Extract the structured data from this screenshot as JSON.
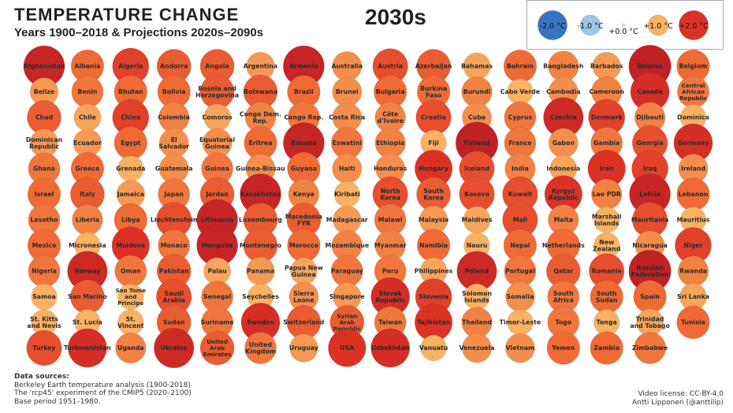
{
  "header": {
    "title": "TEMPERATURE CHANGE",
    "subtitle": "Years 1900–2018 & Projections 2020s–2090s",
    "year": "2030s"
  },
  "legend": {
    "items": [
      {
        "label": "-2.0 °C",
        "value": -2.0,
        "color": "#3a73c2"
      },
      {
        "label": "-1.0 °C",
        "value": -1.0,
        "color": "#9cc7e8"
      },
      {
        "label": "+0.0 °C",
        "value": 0.0,
        "color": "#f6e3b8"
      },
      {
        "label": "+1.0 °C",
        "value": 1.0,
        "color": "#f9b163"
      },
      {
        "label": "+2.0 °C",
        "value": 2.0,
        "color": "#dc3226"
      }
    ]
  },
  "chart_data": {
    "type": "bubble-grid",
    "title": "TEMPERATURE CHANGE",
    "subtitle": "Years 1900–2018 & Projections 2020s–2090s",
    "period": "2030s",
    "unit": "°C",
    "countries": [
      {
        "name": "Afghanistan",
        "value": 2.3
      },
      {
        "name": "Albania",
        "value": 1.6
      },
      {
        "name": "Algeria",
        "value": 1.9
      },
      {
        "name": "Andorra",
        "value": 1.7
      },
      {
        "name": "Angola",
        "value": 1.7
      },
      {
        "name": "Argentina",
        "value": 1.2
      },
      {
        "name": "Armenia",
        "value": 2.3
      },
      {
        "name": "Australia",
        "value": 1.3
      },
      {
        "name": "Austria",
        "value": 1.8
      },
      {
        "name": "Azerbaijan",
        "value": 1.7
      },
      {
        "name": "Bahamas",
        "value": 1.1
      },
      {
        "name": "Bahrain",
        "value": 1.6
      },
      {
        "name": "Bangladesh",
        "value": 1.4
      },
      {
        "name": "Barbados",
        "value": 1.2
      },
      {
        "name": "Belarus",
        "value": 2.4
      },
      {
        "name": "Belgium",
        "value": 1.6
      },
      {
        "name": "Belize",
        "value": 1.2
      },
      {
        "name": "Benin",
        "value": 1.5
      },
      {
        "name": "Bhutan",
        "value": 1.6
      },
      {
        "name": "Bolivia",
        "value": 1.6
      },
      {
        "name": "Bosnia and Herzegovina",
        "value": 1.7
      },
      {
        "name": "Botswana",
        "value": 1.7
      },
      {
        "name": "Brazil",
        "value": 1.6
      },
      {
        "name": "Brunei",
        "value": 1.3
      },
      {
        "name": "Bulgaria",
        "value": 1.6
      },
      {
        "name": "Burkina Faso",
        "value": 1.6
      },
      {
        "name": "Burundi",
        "value": 1.4
      },
      {
        "name": "Cabo Verde",
        "value": 1.0
      },
      {
        "name": "Cambodia",
        "value": 1.3
      },
      {
        "name": "Cameroon",
        "value": 1.4
      },
      {
        "name": "Canada",
        "value": 2.1
      },
      {
        "name": "Central African Republic",
        "value": 1.5
      },
      {
        "name": "Chad",
        "value": 1.7
      },
      {
        "name": "Chile",
        "value": 1.1
      },
      {
        "name": "China",
        "value": 1.9
      },
      {
        "name": "Colombia",
        "value": 1.4
      },
      {
        "name": "Comoros",
        "value": 1.1
      },
      {
        "name": "Congo Dem. Rep.",
        "value": 1.4
      },
      {
        "name": "Congo Rep.",
        "value": 1.5
      },
      {
        "name": "Costa Rica",
        "value": 1.3
      },
      {
        "name": "Côte d'Ivoire",
        "value": 1.4
      },
      {
        "name": "Croatia",
        "value": 1.8
      },
      {
        "name": "Cuba",
        "value": 1.3
      },
      {
        "name": "Cyprus",
        "value": 1.5
      },
      {
        "name": "Czechia",
        "value": 2.2
      },
      {
        "name": "Denmark",
        "value": 1.9
      },
      {
        "name": "Djibouti",
        "value": 1.4
      },
      {
        "name": "Dominica",
        "value": 1.0
      },
      {
        "name": "Dominican Republic",
        "value": 1.2
      },
      {
        "name": "Ecuador",
        "value": 1.2
      },
      {
        "name": "Egypt",
        "value": 1.6
      },
      {
        "name": "El Salvador",
        "value": 1.3
      },
      {
        "name": "Equatorial Guinea",
        "value": 1.3
      },
      {
        "name": "Eritrea",
        "value": 1.6
      },
      {
        "name": "Estonia",
        "value": 2.3
      },
      {
        "name": "Eswatini",
        "value": 1.5
      },
      {
        "name": "Ethiopia",
        "value": 1.4
      },
      {
        "name": "Fiji",
        "value": 1.0
      },
      {
        "name": "Finland",
        "value": 2.4
      },
      {
        "name": "France",
        "value": 1.5
      },
      {
        "name": "Gabon",
        "value": 1.3
      },
      {
        "name": "Gambia",
        "value": 1.5
      },
      {
        "name": "Georgia",
        "value": 1.8
      },
      {
        "name": "Germany",
        "value": 2.1
      },
      {
        "name": "Ghana",
        "value": 1.5
      },
      {
        "name": "Greece",
        "value": 1.6
      },
      {
        "name": "Grenada",
        "value": 1.0
      },
      {
        "name": "Guatemala",
        "value": 1.3
      },
      {
        "name": "Guinea",
        "value": 1.5
      },
      {
        "name": "Guinea-Bissau",
        "value": 1.3
      },
      {
        "name": "Guyana",
        "value": 1.6
      },
      {
        "name": "Haiti",
        "value": 1.3
      },
      {
        "name": "Honduras",
        "value": 1.3
      },
      {
        "name": "Hungary",
        "value": 2.0
      },
      {
        "name": "Iceland",
        "value": 1.8
      },
      {
        "name": "India",
        "value": 1.4
      },
      {
        "name": "Indonesia",
        "value": 1.1
      },
      {
        "name": "Iran",
        "value": 2.0
      },
      {
        "name": "Iraq",
        "value": 1.9
      },
      {
        "name": "Ireland",
        "value": 1.3
      },
      {
        "name": "Israel",
        "value": 1.6
      },
      {
        "name": "Italy",
        "value": 1.7
      },
      {
        "name": "Jamaica",
        "value": 1.2
      },
      {
        "name": "Japan",
        "value": 1.5
      },
      {
        "name": "Jordan",
        "value": 1.7
      },
      {
        "name": "Kazakhstan",
        "value": 2.3
      },
      {
        "name": "Kenya",
        "value": 1.4
      },
      {
        "name": "Kiribati",
        "value": 1.0
      },
      {
        "name": "North Korea",
        "value": 1.8
      },
      {
        "name": "South Korea",
        "value": 1.7
      },
      {
        "name": "Kosovo",
        "value": 1.8
      },
      {
        "name": "Kuwait",
        "value": 1.8
      },
      {
        "name": "Kyrgyz Republic",
        "value": 2.0
      },
      {
        "name": "Lao PDR",
        "value": 1.4
      },
      {
        "name": "Latvia",
        "value": 2.3
      },
      {
        "name": "Lebanon",
        "value": 1.6
      },
      {
        "name": "Lesotho",
        "value": 1.5
      },
      {
        "name": "Liberia",
        "value": 1.4
      },
      {
        "name": "Libya",
        "value": 1.6
      },
      {
        "name": "Liechtenstein",
        "value": 1.8
      },
      {
        "name": "Lithuania",
        "value": 2.3
      },
      {
        "name": "Luxembourg",
        "value": 1.7
      },
      {
        "name": "Macedonia FYR",
        "value": 1.7
      },
      {
        "name": "Madagascar",
        "value": 1.2
      },
      {
        "name": "Malawi",
        "value": 1.5
      },
      {
        "name": "Malaysia",
        "value": 1.2
      },
      {
        "name": "Maldives",
        "value": 1.1
      },
      {
        "name": "Mali",
        "value": 1.8
      },
      {
        "name": "Malta",
        "value": 1.4
      },
      {
        "name": "Marshall Islands",
        "value": 1.0
      },
      {
        "name": "Mauritania",
        "value": 1.8
      },
      {
        "name": "Mauritius",
        "value": 1.0
      },
      {
        "name": "Mexico",
        "value": 1.6
      },
      {
        "name": "Micronesia",
        "value": 1.0
      },
      {
        "name": "Moldova",
        "value": 2.0
      },
      {
        "name": "Monaco",
        "value": 1.5
      },
      {
        "name": "Mongolia",
        "value": 2.3
      },
      {
        "name": "Montenegro",
        "value": 1.7
      },
      {
        "name": "Morocco",
        "value": 1.6
      },
      {
        "name": "Mozambique",
        "value": 1.4
      },
      {
        "name": "Myanmar",
        "value": 1.4
      },
      {
        "name": "Namibia",
        "value": 1.6
      },
      {
        "name": "Nauru",
        "value": 1.0
      },
      {
        "name": "Nepal",
        "value": 1.6
      },
      {
        "name": "Netherlands",
        "value": 1.6
      },
      {
        "name": "New Zealand",
        "value": 1.0
      },
      {
        "name": "Nicaragua",
        "value": 1.3
      },
      {
        "name": "Niger",
        "value": 1.9
      },
      {
        "name": "Nigeria",
        "value": 1.5
      },
      {
        "name": "Norway",
        "value": 2.2
      },
      {
        "name": "Oman",
        "value": 1.5
      },
      {
        "name": "Pakistan",
        "value": 1.7
      },
      {
        "name": "Palau",
        "value": 1.1
      },
      {
        "name": "Panama",
        "value": 1.2
      },
      {
        "name": "Papua New Guinea",
        "value": 1.1
      },
      {
        "name": "Paraguay",
        "value": 1.5
      },
      {
        "name": "Peru",
        "value": 1.5
      },
      {
        "name": "Philippines",
        "value": 1.1
      },
      {
        "name": "Poland",
        "value": 2.2
      },
      {
        "name": "Portugal",
        "value": 1.5
      },
      {
        "name": "Qatar",
        "value": 1.7
      },
      {
        "name": "Romania",
        "value": 1.8
      },
      {
        "name": "Russian Federation",
        "value": 2.4
      },
      {
        "name": "Rwanda",
        "value": 1.4
      },
      {
        "name": "Samoa",
        "value": 1.0
      },
      {
        "name": "San Marino",
        "value": 1.7
      },
      {
        "name": "Sao Tome and Principe",
        "value": 1.0
      },
      {
        "name": "Saudi Arabia",
        "value": 1.8
      },
      {
        "name": "Senegal",
        "value": 1.5
      },
      {
        "name": "Seychelles",
        "value": 1.0
      },
      {
        "name": "Sierra Leone",
        "value": 1.3
      },
      {
        "name": "Singapore",
        "value": 1.2
      },
      {
        "name": "Slovak Republic",
        "value": 2.1
      },
      {
        "name": "Slovenia",
        "value": 1.9
      },
      {
        "name": "Solomon Islands",
        "value": 1.0
      },
      {
        "name": "Somalia",
        "value": 1.3
      },
      {
        "name": "South Africa",
        "value": 1.5
      },
      {
        "name": "South Sudan",
        "value": 1.6
      },
      {
        "name": "Spain",
        "value": 1.6
      },
      {
        "name": "Sri Lanka",
        "value": 1.1
      },
      {
        "name": "St. Kitts and Nevis",
        "value": 1.0
      },
      {
        "name": "St. Lucia",
        "value": 1.0
      },
      {
        "name": "St. Vincent",
        "value": 1.0
      },
      {
        "name": "Sudan",
        "value": 1.7
      },
      {
        "name": "Suriname",
        "value": 1.5
      },
      {
        "name": "Sweden",
        "value": 2.1
      },
      {
        "name": "Switzerland",
        "value": 1.7
      },
      {
        "name": "Syrian Arab Republic",
        "value": 1.7
      },
      {
        "name": "Taiwan",
        "value": 1.5
      },
      {
        "name": "Tajikistan",
        "value": 2.0
      },
      {
        "name": "Thailand",
        "value": 1.4
      },
      {
        "name": "Timor-Leste",
        "value": 1.0
      },
      {
        "name": "Togo",
        "value": 1.5
      },
      {
        "name": "Tonga",
        "value": 1.0
      },
      {
        "name": "Trinidad and Tobago",
        "value": 1.1
      },
      {
        "name": "Tunisia",
        "value": 1.6
      },
      {
        "name": "Turkey",
        "value": 1.8
      },
      {
        "name": "Turkmenistan",
        "value": 2.1
      },
      {
        "name": "Uganda",
        "value": 1.4
      },
      {
        "name": "Ukraine",
        "value": 2.2
      },
      {
        "name": "United Arab Emirates",
        "value": 1.7
      },
      {
        "name": "United Kingdom",
        "value": 1.5
      },
      {
        "name": "Uruguay",
        "value": 1.2
      },
      {
        "name": "USA",
        "value": 2.0
      },
      {
        "name": "Uzbekistan",
        "value": 2.1
      },
      {
        "name": "Vanuatu",
        "value": 1.0
      },
      {
        "name": "Venezuela",
        "value": 1.3
      },
      {
        "name": "Vietnam",
        "value": 1.3
      },
      {
        "name": "Yemen",
        "value": 1.6
      },
      {
        "name": "Zambia",
        "value": 1.6
      },
      {
        "name": "Zimbabwe",
        "value": 1.5
      }
    ]
  },
  "sources": {
    "heading": "Data sources:",
    "line1": "Berkeley Earth temperature analysis (1900-2018)",
    "line2": "The 'rcp45' experiment of the CMIP5 (2020–2100)",
    "line3": "Base period 1951–1980."
  },
  "credits": {
    "license": "Video license: CC-BY-4.0",
    "author": "Antti Lipponen (@anttilip)"
  }
}
